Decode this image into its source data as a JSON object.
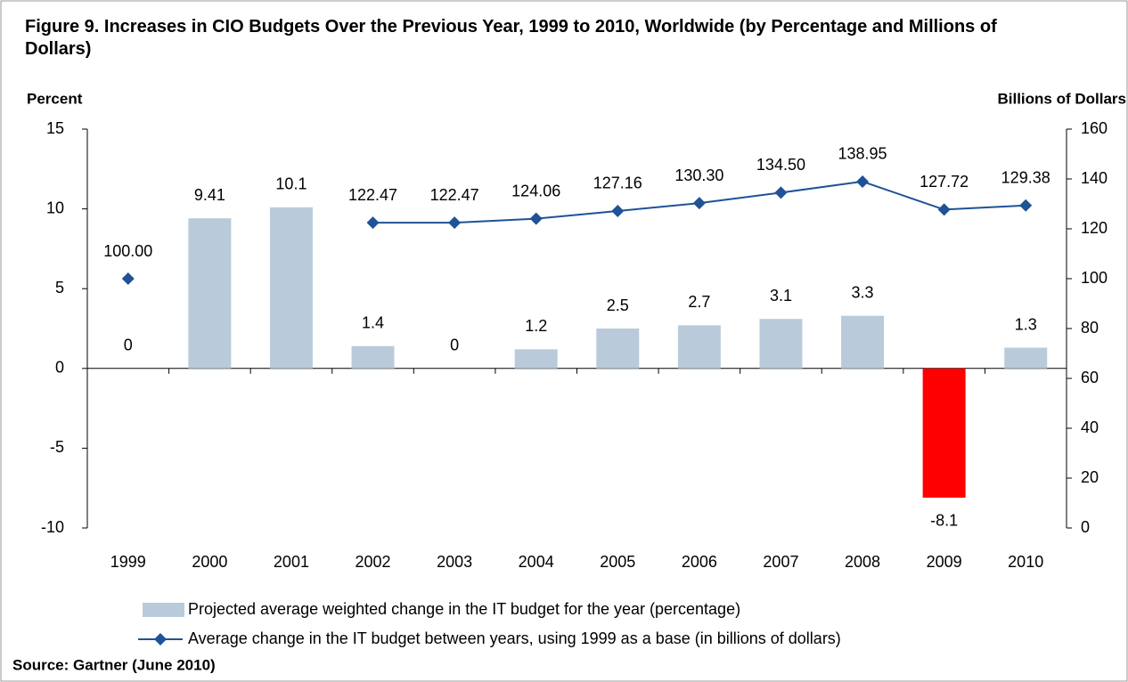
{
  "chart_data": {
    "type": "bar",
    "title": "Figure 9. Increases in CIO Budgets Over the Previous Year, 1999 to 2010, Worldwide (by Percentage and Millions of Dollars)",
    "y_label": "Percent",
    "y2_label": "Billions of Dollars",
    "source": "Source: Gartner (June 2010)",
    "categories": [
      "1999",
      "2000",
      "2001",
      "2002",
      "2003",
      "2004",
      "2005",
      "2006",
      "2007",
      "2008",
      "2009",
      "2010"
    ],
    "series": [
      {
        "name": "Projected average weighted change in the IT budget for the year (percentage)",
        "type": "bar",
        "color": "#b9cbda",
        "colors": [
          "#b9cbda",
          "#b9cbda",
          "#b9cbda",
          "#b9cbda",
          "#b9cbda",
          "#b9cbda",
          "#b9cbda",
          "#b9cbda",
          "#b9cbda",
          "#b9cbda",
          "#ff0000",
          "#b9cbda"
        ],
        "values": [
          0,
          9.41,
          10.1,
          1.4,
          0,
          1.2,
          2.5,
          2.7,
          3.1,
          3.3,
          -8.1,
          1.3
        ]
      },
      {
        "name": "Average change in the IT budget between years, using 1999 as a base (in billions of dollars)",
        "type": "line",
        "axis": "y2",
        "color": "#1f5296",
        "values": [
          100,
          null,
          null,
          122.47,
          122.47,
          124.06,
          127.16,
          130.3,
          134.5,
          138.95,
          127.72,
          129.38
        ],
        "value_labels": [
          "100.00",
          null,
          null,
          "122.47",
          "122.47",
          "124.06",
          "127.16",
          "130.30",
          "134.50",
          "138.95",
          "127.72",
          "129.38"
        ]
      }
    ],
    "ylim": [
      -10,
      15
    ],
    "yticks": [
      -10,
      -5,
      0,
      5,
      10,
      15
    ],
    "y2lim": [
      0,
      160
    ],
    "y2ticks": [
      0,
      20,
      40,
      60,
      80,
      100,
      120,
      140,
      160
    ],
    "grid": false,
    "legend": "bottom"
  }
}
